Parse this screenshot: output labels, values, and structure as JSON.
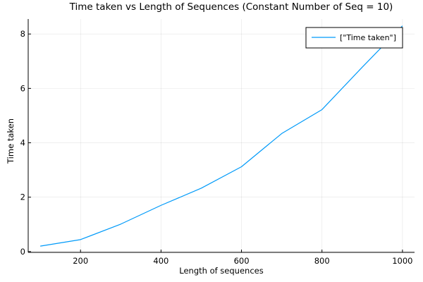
{
  "chart_data": {
    "type": "line",
    "title": "Time taken vs Length of Sequences (Constant Number of Seq = 10)",
    "xlabel": "Length of sequences",
    "ylabel": "Time taken",
    "xlim": [
      70,
      1030
    ],
    "ylim": [
      -0.03,
      8.55
    ],
    "xticks": [
      200,
      400,
      600,
      800,
      1000
    ],
    "yticks": [
      0,
      2,
      4,
      6,
      8
    ],
    "grid": true,
    "legend_position": "top-right",
    "series": [
      {
        "name": "[\"Time taken\"]",
        "color": "#009AF9",
        "x": [
          100,
          200,
          300,
          400,
          500,
          600,
          700,
          800,
          900,
          1000
        ],
        "y": [
          0.2,
          0.44,
          1.01,
          1.7,
          2.33,
          3.12,
          4.34,
          5.22,
          6.78,
          8.3
        ]
      }
    ]
  }
}
